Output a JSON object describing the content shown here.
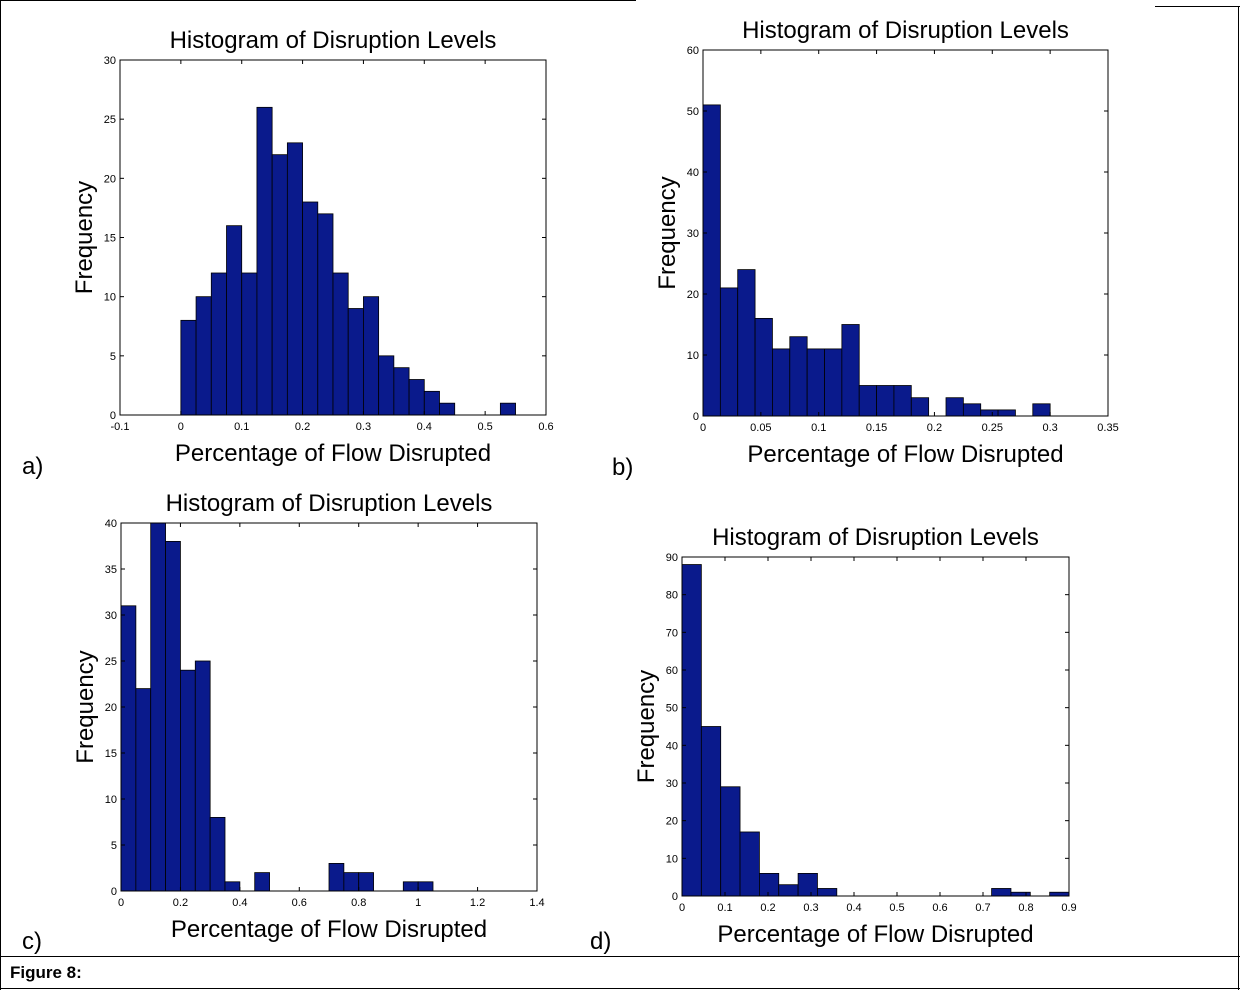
{
  "figure": {
    "caption": "Figure 8:",
    "panel_letters": [
      "a)",
      "b)",
      "c)",
      "d)"
    ]
  },
  "colors": {
    "bar_fill": "#0a1a8c",
    "bar_edge": "#000000",
    "axis": "#000000"
  },
  "chart_data": [
    {
      "type": "bar",
      "panel": "a)",
      "title": "Histogram of Disruption Levels",
      "xlabel": "Percentage of Flow Disrupted",
      "ylabel": "Frequency",
      "xlim": [
        -0.1,
        0.6
      ],
      "ylim": [
        0,
        30
      ],
      "xticks": [
        -0.1,
        0,
        0.1,
        0.2,
        0.3,
        0.4,
        0.5,
        0.6
      ],
      "xtick_labels": [
        "-0.1",
        "0",
        "0.1",
        "0.2",
        "0.3",
        "0.4",
        "0.5",
        "0.6"
      ],
      "yticks": [
        0,
        5,
        10,
        15,
        20,
        25,
        30
      ],
      "ytick_labels": [
        "0",
        "5",
        "10",
        "15",
        "20",
        "25",
        "30"
      ],
      "bin_start": 0,
      "bin_width": 0.025,
      "values": [
        8,
        10,
        12,
        16,
        12,
        26,
        22,
        23,
        18,
        17,
        12,
        9,
        10,
        5,
        4,
        3,
        2,
        1,
        0,
        0,
        0,
        1
      ]
    },
    {
      "type": "bar",
      "panel": "b)",
      "title": "Histogram of Disruption Levels",
      "xlabel": "Percentage of Flow Disrupted",
      "ylabel": "Frequency",
      "xlim": [
        0,
        0.35
      ],
      "ylim": [
        0,
        60
      ],
      "xticks": [
        0,
        0.05,
        0.1,
        0.15,
        0.2,
        0.25,
        0.3,
        0.35
      ],
      "xtick_labels": [
        "0",
        "0.05",
        "0.1",
        "0.15",
        "0.2",
        "0.25",
        "0.3",
        "0.35"
      ],
      "yticks": [
        0,
        10,
        20,
        30,
        40,
        50,
        60
      ],
      "ytick_labels": [
        "0",
        "10",
        "20",
        "30",
        "40",
        "50",
        "60"
      ],
      "bin_start": 0,
      "bin_width": 0.015,
      "values": [
        51,
        21,
        24,
        16,
        11,
        13,
        11,
        11,
        15,
        5,
        5,
        5,
        3,
        0,
        3,
        2,
        1,
        1,
        0,
        2
      ]
    },
    {
      "type": "bar",
      "panel": "c)",
      "title": "Histogram of Disruption Levels",
      "xlabel": "Percentage of Flow Disrupted",
      "ylabel": "Frequency",
      "xlim": [
        0,
        1.4
      ],
      "ylim": [
        0,
        40
      ],
      "xticks": [
        0,
        0.2,
        0.4,
        0.6,
        0.8,
        1,
        1.2,
        1.4
      ],
      "xtick_labels": [
        "0",
        "0.2",
        "0.4",
        "0.6",
        "0.8",
        "1",
        "1.2",
        "1.4"
      ],
      "yticks": [
        0,
        5,
        10,
        15,
        20,
        25,
        30,
        35,
        40
      ],
      "ytick_labels": [
        "0",
        "5",
        "10",
        "15",
        "20",
        "25",
        "30",
        "35",
        "40"
      ],
      "bin_start": 0,
      "bin_width": 0.05,
      "values": [
        31,
        22,
        40,
        38,
        24,
        25,
        8,
        1,
        0,
        2,
        0,
        0,
        0,
        0,
        3,
        2,
        2,
        0,
        0,
        1,
        1
      ]
    },
    {
      "type": "bar",
      "panel": "d)",
      "title": "Histogram of Disruption Levels",
      "xlabel": "Percentage of Flow Disrupted",
      "ylabel": "Frequency",
      "xlim": [
        0,
        0.9
      ],
      "ylim": [
        0,
        90
      ],
      "xticks": [
        0,
        0.1,
        0.2,
        0.3,
        0.4,
        0.5,
        0.6,
        0.7,
        0.8,
        0.9
      ],
      "xtick_labels": [
        "0",
        "0.1",
        "0.2",
        "0.3",
        "0.4",
        "0.5",
        "0.6",
        "0.7",
        "0.8",
        "0.9"
      ],
      "yticks": [
        0,
        10,
        20,
        30,
        40,
        50,
        60,
        70,
        80,
        90
      ],
      "ytick_labels": [
        "0",
        "10",
        "20",
        "30",
        "40",
        "50",
        "60",
        "70",
        "80",
        "90"
      ],
      "bin_start": 0,
      "bin_width": 0.045,
      "values": [
        88,
        45,
        29,
        17,
        6,
        3,
        6,
        2,
        0,
        0,
        0,
        0,
        0,
        0,
        0,
        0,
        2,
        1,
        0,
        1
      ]
    }
  ]
}
